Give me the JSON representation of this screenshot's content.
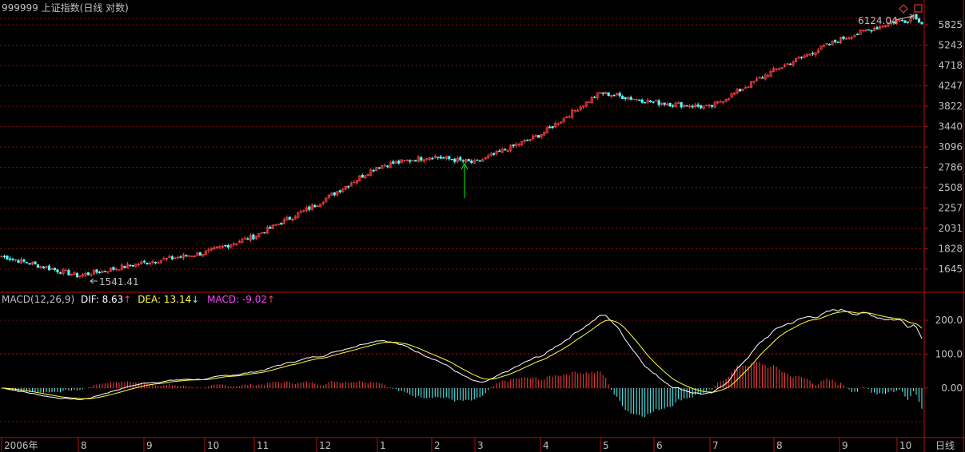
{
  "header": {
    "code": "999999",
    "name": "上证指数",
    "mode": "(日线 对数)"
  },
  "price_panel": {
    "y_ticks": [
      "5825",
      "5243",
      "4718",
      "4247",
      "3822",
      "3440",
      "3096",
      "2786",
      "2508",
      "2257",
      "2031",
      "1828",
      "1645"
    ],
    "high_label": "6124.04",
    "low_label": "1541.41"
  },
  "macd_panel": {
    "title": "MACD(12,26,9)",
    "dif_label": "DIF: 8.63",
    "dea_label": "DEA: 13.14",
    "macd_label": "MACD: -9.02",
    "y_ticks": [
      "200.0",
      "100.0",
      "0.00"
    ]
  },
  "time_axis": {
    "labels": [
      "2006年",
      "8",
      "9",
      "10",
      "11",
      "12",
      "1",
      "2",
      "3",
      "4",
      "5",
      "6",
      "7",
      "8",
      "9",
      "10"
    ],
    "period_label": "日线"
  },
  "colors": {
    "grid": "#7a1010",
    "border": "#b01010",
    "up": "#ff4040",
    "down": "#54ffff",
    "dif": "#ffffff",
    "dea": "#ffff40",
    "macd_label": "#ff40ff",
    "axis_text": "#c0c0c0",
    "arrow_green": "#00ff00"
  },
  "chart_data": {
    "type": "candlestick",
    "price_scale": "log",
    "price_range": [
      1541.41,
      6124.04
    ],
    "price_anchors": [
      {
        "month": "2006-07",
        "close": 1760
      },
      {
        "month": "2006-08",
        "close": 1590
      },
      {
        "month": "2006-09",
        "close": 1700
      },
      {
        "month": "2006-10",
        "close": 1790
      },
      {
        "month": "2006-11",
        "close": 1950
      },
      {
        "month": "2006-12",
        "close": 2300
      },
      {
        "month": "2007-01",
        "close": 2800
      },
      {
        "month": "2007-02",
        "close": 2950
      },
      {
        "month": "2007-03",
        "close": 2850
      },
      {
        "month": "2007-04",
        "close": 3300
      },
      {
        "month": "2007-05",
        "close": 4100
      },
      {
        "month": "2007-06",
        "close": 3900
      },
      {
        "month": "2007-07",
        "close": 3800
      },
      {
        "month": "2007-08",
        "close": 4600
      },
      {
        "month": "2007-09",
        "close": 5400
      },
      {
        "month": "2007-10",
        "close": 5950
      }
    ],
    "macd_params": [
      12,
      26,
      9
    ],
    "dif_last": 8.63,
    "dea_last": 13.14,
    "macd_last": -9.02
  }
}
